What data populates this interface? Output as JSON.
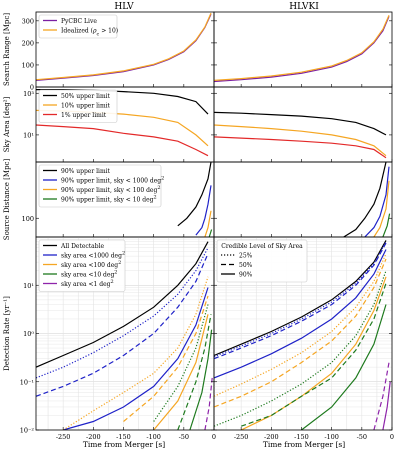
{
  "columns": [
    "HLV",
    "HLVKI"
  ],
  "xlabel": "Time from Merger [s]",
  "xticks": [
    "-250",
    "-200",
    "-150",
    "-100",
    "-50",
    "0"
  ],
  "xlim": [
    -295,
    0
  ],
  "colors": {
    "pycbc": "#7b1fa2",
    "ideal": "#f5a623",
    "black": "#000000",
    "blue": "#1f22c8",
    "orange": "#f5a623",
    "green": "#1e7a1e",
    "purple": "#8e24aa",
    "red": "#e32929"
  },
  "chart_data": [
    {
      "type": "line",
      "ylabel": "Search Range [Mpc]",
      "yscale": "linear",
      "ylim": [
        0,
        340
      ],
      "yticks": [
        "0",
        "100",
        "200",
        "300"
      ],
      "legend": "top-left (HLV panel)",
      "series": [
        {
          "name": "PyCBC Live",
          "color": "pycbc",
          "dash": "solid",
          "x_hlv": [
            -295,
            -250,
            -200,
            -150,
            -100,
            -75,
            -50,
            -30,
            -15,
            -5
          ],
          "y_hlv": [
            30,
            40,
            52,
            70,
            100,
            125,
            160,
            210,
            270,
            330
          ],
          "x_hlvki": [
            -295,
            -250,
            -200,
            -150,
            -100,
            -75,
            -50,
            -30,
            -15,
            -5
          ],
          "y_hlvki": [
            25,
            33,
            45,
            62,
            90,
            115,
            150,
            200,
            255,
            320
          ]
        },
        {
          "name": "Idealized $(\\rho_c > 10)$",
          "label_parts": [
            "Idealized (",
            "ρ",
            "c",
            " > 10)"
          ],
          "color": "ideal",
          "dash": "solid",
          "x_hlv": [
            -295,
            -250,
            -200,
            -150,
            -100,
            -75,
            -50,
            -30,
            -15,
            -5
          ],
          "y_hlv": [
            33,
            43,
            55,
            73,
            103,
            128,
            163,
            213,
            272,
            335
          ],
          "x_hlvki": [
            -295,
            -250,
            -200,
            -150,
            -100,
            -75,
            -50,
            -30,
            -15,
            -5
          ],
          "y_hlvki": [
            30,
            38,
            50,
            67,
            95,
            120,
            155,
            205,
            262,
            325
          ]
        }
      ]
    },
    {
      "type": "line",
      "ylabel": "Sky Area [deg²]",
      "yscale": "log",
      "ylim": [
        0.5,
        2000
      ],
      "yticks": [
        "10¹",
        "10³"
      ],
      "ytick_values": [
        10,
        1000
      ],
      "legend": "top-left (HLV panel)",
      "series": [
        {
          "name": "50% upper limit",
          "color": "black",
          "dash": "solid",
          "x_hlv": [
            -295,
            -250,
            -200,
            -150,
            -100,
            -60,
            -30,
            -10
          ],
          "y_hlv": [
            1500,
            1500,
            1400,
            1200,
            1000,
            700,
            400,
            100
          ],
          "x_hlvki": [
            -295,
            -250,
            -200,
            -150,
            -100,
            -60,
            -30,
            -10
          ],
          "y_hlvki": [
            120,
            110,
            95,
            80,
            60,
            40,
            20,
            10
          ]
        },
        {
          "name": "10% upper limit",
          "color": "orange",
          "dash": "solid",
          "x_hlv": [
            -295,
            -250,
            -200,
            -150,
            -100,
            -60,
            -30,
            -10
          ],
          "y_hlv": [
            150,
            140,
            120,
            100,
            70,
            40,
            10,
            3
          ],
          "x_hlvki": [
            -295,
            -250,
            -200,
            -150,
            -100,
            -60,
            -30,
            -10
          ],
          "y_hlvki": [
            30,
            25,
            20,
            15,
            10,
            6,
            3,
            1
          ]
        },
        {
          "name": "1% upper limit",
          "color": "red",
          "dash": "solid",
          "x_hlv": [
            -295,
            -250,
            -200,
            -150,
            -100,
            -60,
            -30,
            -10
          ],
          "y_hlv": [
            30,
            25,
            20,
            12,
            8,
            5,
            2,
            1
          ],
          "x_hlvki": [
            -295,
            -250,
            -200,
            -150,
            -100,
            -60,
            -30,
            -10
          ],
          "y_hlvki": [
            8,
            7,
            6,
            5,
            4,
            3,
            2,
            0.8
          ]
        }
      ]
    },
    {
      "type": "line",
      "ylabel": "Source Distance [Mpc]",
      "yscale": "linear",
      "ylim": [
        80,
        160
      ],
      "yticks": [
        "100"
      ],
      "ytick_values": [
        100
      ],
      "legend": "top-left (HLV panel)",
      "series": [
        {
          "name": "90% upper limit",
          "color": "black",
          "dash": "solid",
          "x_hlv": [
            -60,
            -45,
            -30,
            -20,
            -10,
            -5
          ],
          "y_hlv": [
            92,
            100,
            112,
            125,
            142,
            160
          ],
          "x_hlvki": [
            -80,
            -60,
            -45,
            -30,
            -20,
            -10
          ],
          "y_hlvki": [
            80,
            88,
            100,
            115,
            132,
            160
          ]
        },
        {
          "name": "90% upper limit, sky < 1000 deg²",
          "label_parts": [
            "90% upper limit, sky < 1000 deg",
            "2"
          ],
          "color": "blue",
          "dash": "solid",
          "x_hlv": [
            -30,
            -20,
            -15,
            -10,
            -5
          ],
          "y_hlv": [
            82,
            90,
            100,
            115,
            135
          ],
          "x_hlvki": [
            -45,
            -30,
            -20,
            -10,
            -5
          ],
          "y_hlvki": [
            80,
            90,
            102,
            125,
            155
          ]
        },
        {
          "name": "90% upper limit, sky < 100 deg²",
          "label_parts": [
            "90% upper limit, sky < 100 deg",
            "2"
          ],
          "color": "orange",
          "dash": "solid",
          "x_hlv": [
            -15,
            -10,
            -5
          ],
          "y_hlv": [
            80,
            90,
            108
          ],
          "x_hlvki": [
            -30,
            -20,
            -10,
            -5
          ],
          "y_hlvki": [
            80,
            90,
            110,
            140
          ]
        },
        {
          "name": "90% upper limit, sky < 10 deg²",
          "label_parts": [
            "90% upper limit, sky < 10 deg",
            "2"
          ],
          "color": "green",
          "dash": "solid",
          "x_hlv": [
            -8,
            -4
          ],
          "y_hlv": [
            80,
            88
          ],
          "x_hlvki": [
            -15,
            -8,
            -4
          ],
          "y_hlvki": [
            80,
            92,
            105
          ]
        }
      ]
    },
    {
      "type": "line",
      "ylabel": "Detection Rate [yr⁻¹]",
      "yscale": "log",
      "ylim": [
        0.01,
        100
      ],
      "yticks": [
        "10⁻²",
        "10⁻¹",
        "10⁰",
        "10¹"
      ],
      "ytick_values": [
        0.01,
        0.1,
        1,
        10
      ],
      "legend_hlv": {
        "position": "top-left",
        "entries": [
          {
            "label": "All Detectable",
            "color": "black"
          },
          {
            "label": "sky area <1000 deg²",
            "label_parts": [
              "sky area <1000 deg",
              "2"
            ],
            "color": "blue"
          },
          {
            "label": "sky area <100 deg²",
            "label_parts": [
              "sky area <100 deg",
              "2"
            ],
            "color": "orange"
          },
          {
            "label": "sky area <10 deg²",
            "label_parts": [
              "sky area <10 deg",
              "2"
            ],
            "color": "green"
          },
          {
            "label": "sky area <1 deg²",
            "label_parts": [
              "sky area <1 deg",
              "2"
            ],
            "color": "purple"
          }
        ]
      },
      "legend_hlvki": {
        "position": "top-left",
        "title": "Credible Level of Sky Area",
        "entries": [
          {
            "label": "25%",
            "dash": "dotted"
          },
          {
            "label": "50%",
            "dash": "dashed"
          },
          {
            "label": "90%",
            "dash": "solid"
          }
        ]
      },
      "series_hlv": [
        {
          "color": "black",
          "dash": "solid",
          "x": [
            -295,
            -250,
            -200,
            -150,
            -100,
            -60,
            -30,
            -10
          ],
          "y": [
            0.2,
            0.35,
            0.65,
            1.4,
            3.5,
            10,
            28,
            80
          ]
        },
        {
          "color": "blue",
          "dash": "dotted",
          "x": [
            -295,
            -250,
            -200,
            -150,
            -100,
            -60,
            -30,
            -10
          ],
          "y": [
            0.12,
            0.2,
            0.4,
            0.9,
            2.3,
            6.5,
            20,
            60
          ]
        },
        {
          "color": "blue",
          "dash": "dashed",
          "x": [
            -295,
            -250,
            -200,
            -150,
            -100,
            -60,
            -30,
            -10
          ],
          "y": [
            0.05,
            0.08,
            0.15,
            0.35,
            1.0,
            3.5,
            12,
            45
          ]
        },
        {
          "color": "blue",
          "dash": "solid",
          "x": [
            -250,
            -200,
            -150,
            -100,
            -60,
            -30,
            -10
          ],
          "y": [
            0.01,
            0.015,
            0.03,
            0.08,
            0.3,
            1.5,
            9
          ]
        },
        {
          "color": "orange",
          "dash": "dotted",
          "x": [
            -250,
            -200,
            -150,
            -100,
            -60,
            -30,
            -10
          ],
          "y": [
            0.01,
            0.025,
            0.06,
            0.15,
            0.5,
            2.5,
            15
          ]
        },
        {
          "color": "orange",
          "dash": "dashed",
          "x": [
            -150,
            -100,
            -60,
            -30,
            -10
          ],
          "y": [
            0.015,
            0.05,
            0.2,
            1.0,
            6
          ]
        },
        {
          "color": "orange",
          "dash": "solid",
          "x": [
            -100,
            -60,
            -30,
            -10
          ],
          "y": [
            0.01,
            0.04,
            0.25,
            2.5
          ]
        },
        {
          "color": "green",
          "dash": "dotted",
          "x": [
            -100,
            -60,
            -30,
            -10
          ],
          "y": [
            0.015,
            0.08,
            0.5,
            4
          ]
        },
        {
          "color": "green",
          "dash": "dashed",
          "x": [
            -60,
            -30,
            -15,
            -5
          ],
          "y": [
            0.01,
            0.1,
            0.5,
            2.5
          ]
        },
        {
          "color": "green",
          "dash": "solid",
          "x": [
            -40,
            -20,
            -10,
            -4
          ],
          "y": [
            0.01,
            0.06,
            0.3,
            1.2
          ]
        },
        {
          "color": "purple",
          "dash": "dashed",
          "x": [
            -15,
            -8,
            -3
          ],
          "y": [
            0.01,
            0.03,
            0.12
          ]
        }
      ],
      "series_hlvki": [
        {
          "color": "black",
          "dash": "solid",
          "x": [
            -295,
            -250,
            -200,
            -150,
            -100,
            -60,
            -30,
            -10
          ],
          "y": [
            0.35,
            0.6,
            1.1,
            2.2,
            5,
            12,
            30,
            85
          ]
        },
        {
          "color": "blue",
          "dash": "dotted",
          "x": [
            -295,
            -250,
            -200,
            -150,
            -100,
            -60,
            -30,
            -10
          ],
          "y": [
            0.33,
            0.55,
            1.0,
            2.0,
            4.5,
            11,
            28,
            80
          ]
        },
        {
          "color": "blue",
          "dash": "dashed",
          "x": [
            -295,
            -250,
            -200,
            -150,
            -100,
            -60,
            -30,
            -10
          ],
          "y": [
            0.3,
            0.5,
            0.9,
            1.8,
            4,
            10,
            26,
            75
          ]
        },
        {
          "color": "blue",
          "dash": "solid",
          "x": [
            -295,
            -250,
            -200,
            -150,
            -100,
            -60,
            -30,
            -10
          ],
          "y": [
            0.12,
            0.2,
            0.38,
            0.8,
            2,
            5.5,
            17,
            55
          ]
        },
        {
          "color": "orange",
          "dash": "dotted",
          "x": [
            -295,
            -250,
            -200,
            -150,
            -100,
            -60,
            -30,
            -10
          ],
          "y": [
            0.05,
            0.09,
            0.18,
            0.4,
            1.1,
            3.5,
            12,
            45
          ]
        },
        {
          "color": "orange",
          "dash": "dashed",
          "x": [
            -295,
            -250,
            -200,
            -150,
            -100,
            -60,
            -30,
            -10
          ],
          "y": [
            0.03,
            0.05,
            0.1,
            0.25,
            0.7,
            2.3,
            9,
            35
          ]
        },
        {
          "color": "orange",
          "dash": "solid",
          "x": [
            -250,
            -200,
            -150,
            -100,
            -60,
            -30,
            -10
          ],
          "y": [
            0.01,
            0.02,
            0.05,
            0.15,
            0.6,
            3,
            15
          ]
        },
        {
          "color": "green",
          "dash": "dotted",
          "x": [
            -295,
            -250,
            -200,
            -150,
            -100,
            -60,
            -30,
            -10
          ],
          "y": [
            0.012,
            0.02,
            0.04,
            0.09,
            0.25,
            0.9,
            4,
            20
          ]
        },
        {
          "color": "green",
          "dash": "dashed",
          "x": [
            -250,
            -200,
            -150,
            -100,
            -60,
            -30,
            -10
          ],
          "y": [
            0.012,
            0.02,
            0.05,
            0.12,
            0.45,
            2,
            11
          ]
        },
        {
          "color": "green",
          "dash": "solid",
          "x": [
            -150,
            -100,
            -60,
            -30,
            -10
          ],
          "y": [
            0.01,
            0.03,
            0.12,
            0.6,
            4
          ]
        },
        {
          "color": "purple",
          "dash": "dashed",
          "x": [
            -30,
            -15,
            -5
          ],
          "y": [
            0.01,
            0.05,
            0.25
          ]
        },
        {
          "color": "purple",
          "dash": "solid",
          "x": [
            -15,
            -8,
            -3
          ],
          "y": [
            0.01,
            0.03,
            0.1
          ]
        }
      ]
    }
  ]
}
